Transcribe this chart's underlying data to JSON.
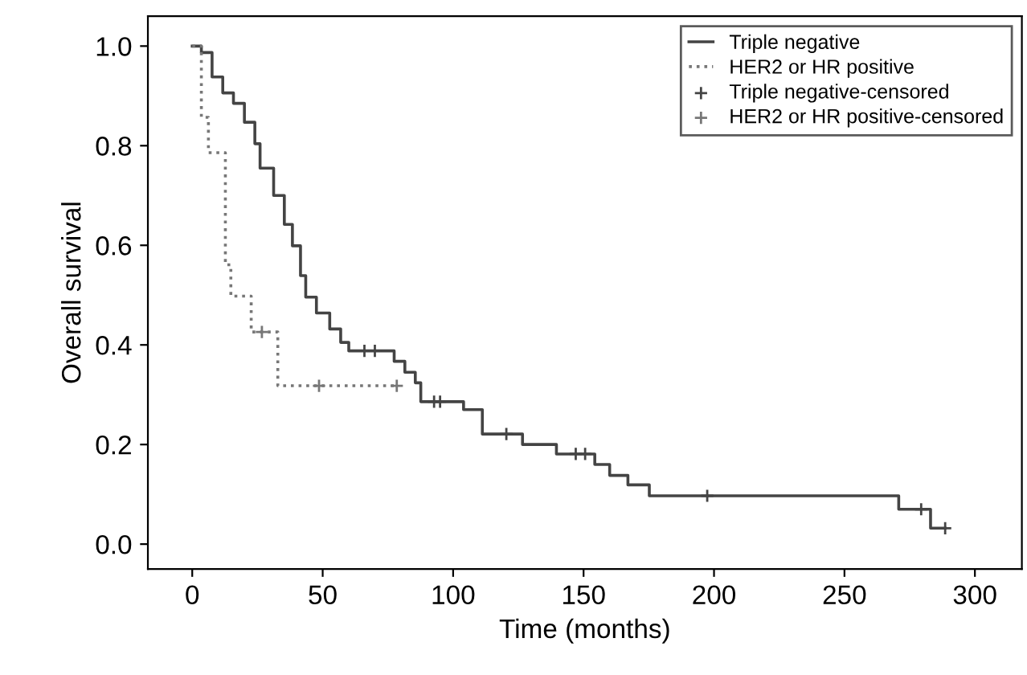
{
  "chart_data": {
    "type": "step",
    "xlabel": "Time (months)",
    "ylabel": "Overall survival",
    "xlim": [
      -17,
      318
    ],
    "ylim": [
      -0.05,
      1.06
    ],
    "xticks": [
      0,
      50,
      100,
      150,
      200,
      250,
      300
    ],
    "yticks": [
      {
        "value": 0,
        "label": "0.0"
      },
      {
        "value": 0.2,
        "label": "0.2"
      },
      {
        "value": 0.4,
        "label": "0.4"
      },
      {
        "value": 0.6,
        "label": "0.6"
      },
      {
        "value": 0.8,
        "label": "0.8"
      },
      {
        "value": 1,
        "label": "1.0"
      }
    ],
    "grid": false,
    "legend": "top right",
    "series": [
      {
        "name": "Triple negative",
        "line_style": "solid",
        "marker": "none",
        "color": "#444444",
        "x": [
          0,
          3.5,
          7.6,
          11.7,
          15.8,
          20,
          24,
          26,
          31.2,
          35.3,
          38.4,
          41.5,
          43.5,
          47.6,
          52.7,
          56.9,
          60,
          77.4,
          81.5,
          85.5,
          87.6,
          104,
          111.2,
          126.6,
          139.6,
          154.3,
          160,
          167,
          175.2,
          270.8,
          283,
          288.6
        ],
        "values": [
          1.0,
          0.987,
          0.938,
          0.906,
          0.885,
          0.847,
          0.804,
          0.755,
          0.7,
          0.642,
          0.599,
          0.539,
          0.496,
          0.464,
          0.432,
          0.405,
          0.388,
          0.367,
          0.345,
          0.324,
          0.286,
          0.27,
          0.221,
          0.2,
          0.181,
          0.16,
          0.138,
          0.119,
          0.097,
          0.07,
          0.032,
          0.032
        ]
      },
      {
        "name": "HER2 or HR positive",
        "line_style": "dotted",
        "marker": "none",
        "color": "#777777",
        "x": [
          0,
          3.5,
          6.2,
          12.7,
          14.8,
          22.6,
          32.8,
          78.4
        ],
        "values": [
          1.0,
          0.857,
          0.786,
          0.561,
          0.498,
          0.426,
          0.318,
          0.318
        ]
      },
      {
        "name": "Triple negative-censored",
        "type": "scatter",
        "marker": "cross",
        "color": "#444444",
        "x": [
          66,
          70,
          92.7,
          95,
          120.4,
          147,
          150.6,
          197.4,
          279.4,
          288.6
        ],
        "values": [
          0.388,
          0.388,
          0.286,
          0.286,
          0.221,
          0.181,
          0.181,
          0.097,
          0.07,
          0.032
        ]
      },
      {
        "name": "HER2 or HR positive-censored",
        "type": "scatter",
        "marker": "cross",
        "color": "#777777",
        "x": [
          26.7,
          48.6,
          78.4
        ],
        "values": [
          0.426,
          0.318,
          0.318
        ]
      }
    ]
  }
}
